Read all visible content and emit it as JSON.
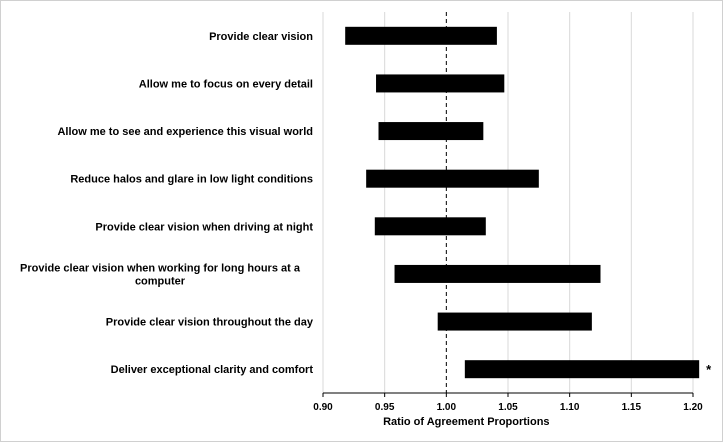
{
  "chart_data": {
    "type": "bar",
    "orientation": "horizontal-range",
    "title": "",
    "xlabel": "Ratio of Agreement Proportions",
    "ylabel": "",
    "xlim": [
      0.9,
      1.2
    ],
    "xticks": [
      "0.90",
      "0.95",
      "1.00",
      "1.05",
      "1.10",
      "1.15",
      "1.20"
    ],
    "reference_line": 1.0,
    "grid": "vertical",
    "categories": [
      [
        "Provide clear vision"
      ],
      [
        "Allow me to focus on every detail"
      ],
      [
        "Allow me to see and experience this visual world"
      ],
      [
        "Reduce halos and glare in low light conditions"
      ],
      [
        "Provide clear vision when driving at night"
      ],
      [
        "Provide clear vision when working for long hours at a",
        "computer"
      ],
      [
        "Provide clear vision throughout the day"
      ],
      [
        "Deliver exceptional clarity and comfort"
      ]
    ],
    "ranges": [
      [
        0.918,
        1.041
      ],
      [
        0.943,
        1.047
      ],
      [
        0.945,
        1.03
      ],
      [
        0.935,
        1.075
      ],
      [
        0.942,
        1.032
      ],
      [
        0.958,
        1.125
      ],
      [
        0.993,
        1.118
      ],
      [
        1.015,
        1.205
      ]
    ],
    "annotations": [
      "",
      "",
      "",
      "",
      "",
      "",
      "",
      "*"
    ],
    "bar_color": "#000000",
    "grid_color": "#d9d9d9"
  }
}
